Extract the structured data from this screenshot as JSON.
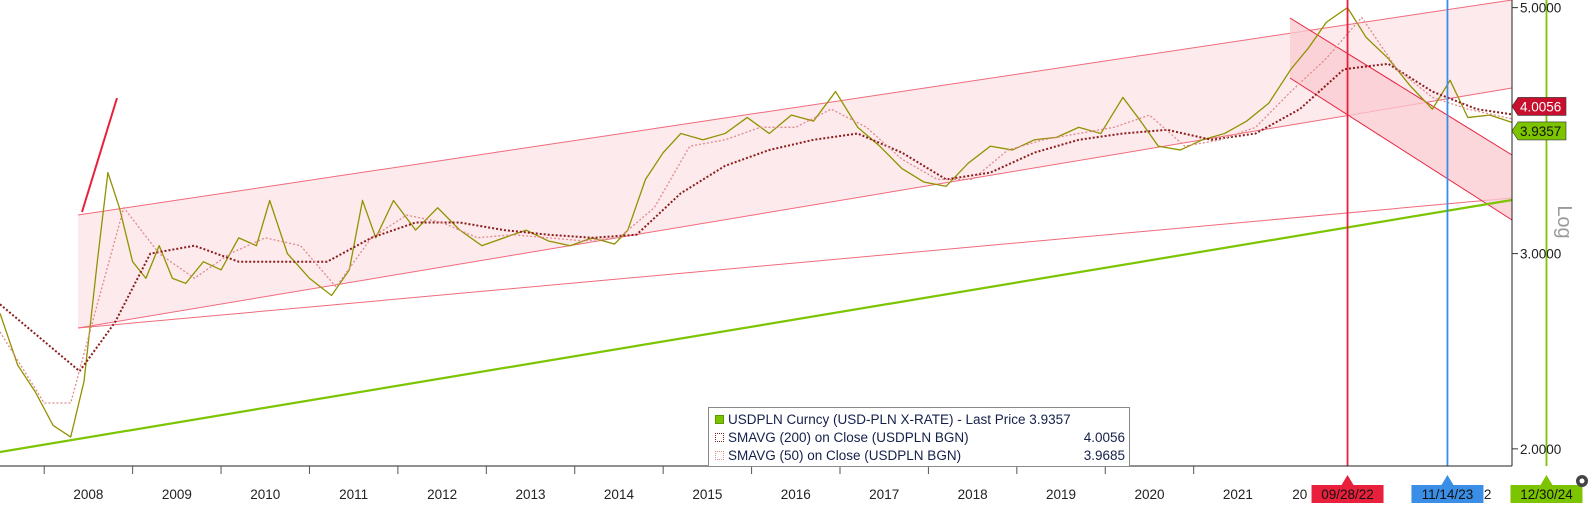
{
  "chart_data": {
    "type": "line",
    "title": "",
    "scale": "log",
    "ylim": [
      1.93,
      5.08
    ],
    "y_ticks": [
      "2.0000",
      "3.0000",
      "5.0000"
    ],
    "y_axis_label": "Log",
    "x_ticks": [
      "2008",
      "2009",
      "2010",
      "2011",
      "2012",
      "2013",
      "2014",
      "2015",
      "2016",
      "2017",
      "2018",
      "2019",
      "2020",
      "2021",
      "20",
      "202"
    ],
    "x_years": [
      2008,
      2009,
      2010,
      2011,
      2012,
      2013,
      2014,
      2015,
      2016,
      2017,
      2018,
      2019,
      2020,
      2021
    ],
    "x_range": [
      2007.5,
      2024.6
    ],
    "date_markers": [
      {
        "label": "09/28/22",
        "x": 2022.74,
        "color": "#e8203c"
      },
      {
        "label": "11/14/23",
        "x": 2023.87,
        "color": "#3a8ee6"
      },
      {
        "label": "12/30/24",
        "x": 2024.99,
        "color": "#7dc400"
      }
    ],
    "last_price_tags": [
      {
        "label": "4.0056",
        "y": 4.0056,
        "color": "#c8102e"
      },
      {
        "label": "3.9357",
        "y": 3.9357,
        "color": "#7dc400"
      }
    ],
    "series": [
      {
        "name": "USDPLN Curncy (USD-PLN X-RATE) - Last Price 3.9357",
        "color": "#7dc400",
        "x": [
          2007.5,
          2007.7,
          2007.9,
          2008.1,
          2008.3,
          2008.45,
          2008.6,
          2008.72,
          2008.85,
          2009.0,
          2009.15,
          2009.3,
          2009.45,
          2009.6,
          2009.8,
          2010.0,
          2010.2,
          2010.4,
          2010.55,
          2010.75,
          2011.0,
          2011.25,
          2011.45,
          2011.6,
          2011.75,
          2011.95,
          2012.2,
          2012.45,
          2012.7,
          2012.95,
          2013.2,
          2013.45,
          2013.7,
          2013.95,
          2014.2,
          2014.45,
          2014.6,
          2014.8,
          2015.0,
          2015.2,
          2015.45,
          2015.7,
          2015.95,
          2016.2,
          2016.45,
          2016.7,
          2016.95,
          2017.2,
          2017.45,
          2017.7,
          2017.95,
          2018.2,
          2018.45,
          2018.7,
          2018.95,
          2019.2,
          2019.45,
          2019.7,
          2019.95,
          2020.2,
          2020.4,
          2020.6,
          2020.85,
          2021.1,
          2021.35,
          2021.6,
          2021.85,
          2022.1,
          2022.3,
          2022.5,
          2022.74,
          2022.95,
          2023.2,
          2023.45,
          2023.7,
          2023.9,
          2024.1,
          2024.35,
          2024.6
        ],
        "values": [
          2.65,
          2.38,
          2.25,
          2.1,
          2.05,
          2.3,
          2.95,
          3.55,
          3.3,
          2.95,
          2.85,
          3.05,
          2.85,
          2.82,
          2.95,
          2.9,
          3.1,
          3.05,
          3.35,
          3.0,
          2.85,
          2.75,
          2.9,
          3.35,
          3.1,
          3.35,
          3.15,
          3.3,
          3.15,
          3.05,
          3.1,
          3.15,
          3.08,
          3.05,
          3.1,
          3.06,
          3.15,
          3.5,
          3.7,
          3.85,
          3.8,
          3.85,
          3.98,
          3.85,
          4.0,
          3.95,
          4.2,
          3.9,
          3.75,
          3.58,
          3.48,
          3.45,
          3.62,
          3.75,
          3.72,
          3.8,
          3.82,
          3.9,
          3.85,
          4.15,
          3.95,
          3.75,
          3.72,
          3.8,
          3.85,
          3.95,
          4.1,
          4.4,
          4.6,
          4.85,
          5.0,
          4.7,
          4.5,
          4.25,
          4.05,
          4.3,
          3.98,
          4.0,
          3.94
        ]
      },
      {
        "name": "SMAVG (200) on Close (USDPLN BGN)",
        "value_label": "4.0056",
        "color": "#8b1d1d",
        "x": [
          2007.5,
          2008.0,
          2008.4,
          2008.8,
          2009.2,
          2009.7,
          2010.2,
          2010.7,
          2011.2,
          2011.7,
          2012.2,
          2012.7,
          2013.2,
          2013.7,
          2014.2,
          2014.7,
          2015.2,
          2015.7,
          2016.2,
          2016.7,
          2017.2,
          2017.7,
          2018.2,
          2018.7,
          2019.2,
          2019.7,
          2020.2,
          2020.7,
          2021.2,
          2021.7,
          2022.2,
          2022.7,
          2023.2,
          2023.7,
          2024.2,
          2024.6
        ],
        "values": [
          2.7,
          2.5,
          2.35,
          2.6,
          3.0,
          3.05,
          2.95,
          2.95,
          2.95,
          3.1,
          3.2,
          3.2,
          3.15,
          3.12,
          3.1,
          3.12,
          3.4,
          3.6,
          3.72,
          3.8,
          3.85,
          3.7,
          3.5,
          3.55,
          3.7,
          3.8,
          3.85,
          3.88,
          3.8,
          3.85,
          4.05,
          4.4,
          4.45,
          4.2,
          4.05,
          4.0056
        ]
      },
      {
        "name": "SMAVG (50) on Close (USDPLN BGN)",
        "value_label": "3.9685",
        "color": "#e08a8a",
        "x": [
          2007.5,
          2008.0,
          2008.3,
          2008.6,
          2008.9,
          2009.3,
          2009.7,
          2010.1,
          2010.5,
          2010.9,
          2011.3,
          2011.7,
          2012.1,
          2012.5,
          2012.9,
          2013.3,
          2013.7,
          2014.1,
          2014.5,
          2014.9,
          2015.3,
          2015.7,
          2016.1,
          2016.5,
          2016.9,
          2017.3,
          2017.7,
          2018.1,
          2018.5,
          2018.9,
          2019.3,
          2019.7,
          2020.1,
          2020.5,
          2020.9,
          2021.3,
          2021.7,
          2022.1,
          2022.5,
          2022.9,
          2023.3,
          2023.7,
          2024.1,
          2024.6
        ],
        "values": [
          2.55,
          2.2,
          2.2,
          2.7,
          3.3,
          3.0,
          2.85,
          3.0,
          3.1,
          3.05,
          2.8,
          3.1,
          3.25,
          3.2,
          3.1,
          3.12,
          3.1,
          3.08,
          3.1,
          3.3,
          3.75,
          3.8,
          3.9,
          3.9,
          4.05,
          3.9,
          3.65,
          3.5,
          3.5,
          3.72,
          3.8,
          3.85,
          3.9,
          4.0,
          3.75,
          3.8,
          3.9,
          4.2,
          4.5,
          4.9,
          4.4,
          4.15,
          4.05,
          3.9685
        ]
      }
    ]
  }
}
